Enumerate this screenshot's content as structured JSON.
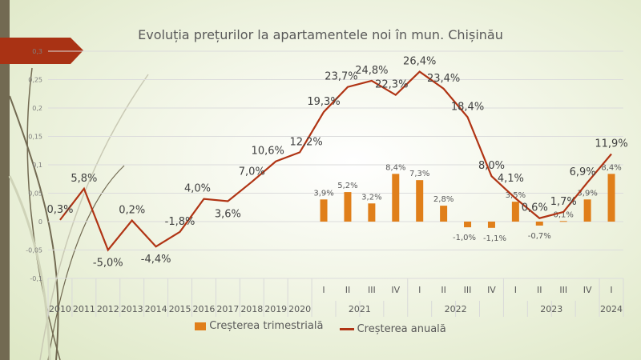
{
  "chart_data": {
    "type": "bar+line",
    "title": "Evoluția prețurilor la apartamentele noi în mun. Chișinău",
    "categories": [
      "2010",
      "2011",
      "2012",
      "2013",
      "2014",
      "2015",
      "2016",
      "2017",
      "2018",
      "2019",
      "2020",
      "I",
      "II",
      "III",
      "IV",
      "I",
      "II",
      "III",
      "IV",
      "I",
      "II",
      "III",
      "IV",
      "I"
    ],
    "year_groups": [
      {
        "label": "2021",
        "start": 11,
        "count": 4
      },
      {
        "label": "2022",
        "start": 15,
        "count": 4
      },
      {
        "label": "2023",
        "start": 19,
        "count": 4
      },
      {
        "label": "2024",
        "start": 23,
        "count": 1
      }
    ],
    "ylim": [
      -0.1,
      0.3
    ],
    "yticks": [
      "-0,1",
      "-0,05",
      "0",
      "0,05",
      "0,1",
      "0,15",
      "0,2",
      "0,25",
      "0,3"
    ],
    "ytick_values": [
      -0.1,
      -0.05,
      0,
      0.05,
      0.1,
      0.15,
      0.2,
      0.25,
      0.3
    ],
    "grid": true,
    "legend_position": "bottom",
    "series": [
      {
        "name": "Creșterea trimestrială",
        "type": "bar",
        "color": "#e07f1a",
        "values": [
          null,
          null,
          null,
          null,
          null,
          null,
          null,
          null,
          null,
          null,
          null,
          0.039,
          0.052,
          0.032,
          0.084,
          0.073,
          0.028,
          -0.01,
          -0.011,
          0.035,
          -0.007,
          0.001,
          0.039,
          0.084
        ],
        "labels": [
          null,
          null,
          null,
          null,
          null,
          null,
          null,
          null,
          null,
          null,
          null,
          "3,9%",
          "5,2%",
          "3,2%",
          "8,4%",
          "7,3%",
          "2,8%",
          "-1,0%",
          "-1,1%",
          "3,5%",
          "-0,7%",
          "0,1%",
          "3,9%",
          "8,4%"
        ]
      },
      {
        "name": "Creșterea anuală",
        "type": "line",
        "color": "#b03414",
        "values": [
          0.003,
          0.058,
          -0.05,
          0.002,
          -0.044,
          -0.018,
          0.04,
          0.036,
          0.07,
          0.106,
          0.122,
          0.193,
          0.237,
          0.248,
          0.223,
          0.264,
          0.234,
          0.184,
          0.08,
          0.041,
          0.006,
          0.017,
          0.069,
          0.119
        ],
        "labels": [
          "0,3%",
          "5,8%",
          "-5,0%",
          "0,2%",
          "-4,4%",
          "-1,8%",
          "4,0%",
          "3,6%",
          "7,0%",
          "10,6%",
          "12,2%",
          "19,3%",
          "23,7%",
          "24,8%",
          "22,3%",
          "26,4%",
          "23,4%",
          "18,4%",
          "8,0%",
          "4,1%",
          "0,6%",
          "1,7%",
          "6,9%",
          "11,9%"
        ]
      }
    ]
  }
}
